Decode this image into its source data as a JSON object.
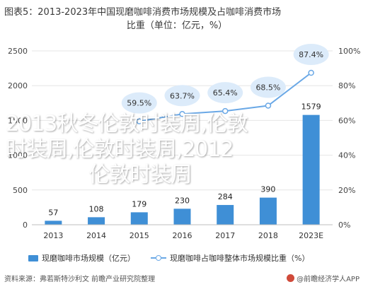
{
  "header": {
    "title_line1": "图表5：2013-2023年中国现磨咖啡消费市场规模及占咖啡消费市场",
    "title_line2": "比重（单位：亿元，%）"
  },
  "overlay": {
    "line1": "2013秋冬伦敦时装周,伦敦",
    "line2": "时装周,伦敦时装周,2012",
    "line3": "伦敦时装周"
  },
  "legend": {
    "bar_label": "现磨咖啡市场规模（亿元）",
    "line_label": "现磨咖啡占咖啡整体市场规模比重（%）"
  },
  "footer": {
    "source": "资料来源：弗若斯特沙利文 前瞻产业研究院整理",
    "brand": "@前瞻经济学人APP"
  },
  "colors": {
    "bar": "#3f8fd6",
    "line": "#6aa8e6",
    "bubble": "#dcebfa"
  },
  "chart_data": {
    "type": "bar",
    "categories": [
      "2013",
      "2014",
      "2015",
      "2016",
      "2017",
      "2018",
      "2023E"
    ],
    "series": [
      {
        "name": "现磨咖啡市场规模（亿元）",
        "type": "bar",
        "axis": "left",
        "values": [
          57,
          108,
          179,
          230,
          284,
          390,
          1579
        ],
        "labels": [
          "57",
          "108",
          "179",
          "230",
          "284",
          "390",
          "1579"
        ]
      },
      {
        "name": "现磨咖啡占咖啡整体市场规模比重（%）",
        "type": "line",
        "axis": "right",
        "values": [
          null,
          null,
          59.5,
          63.7,
          65.4,
          68.5,
          87.4
        ],
        "labels": [
          "",
          "",
          "59.5%",
          "63.7%",
          "65.4%",
          "68.5%",
          "87.4%"
        ]
      }
    ],
    "left_axis": {
      "ylim": [
        0,
        2500
      ],
      "ticks": [
        "0",
        "500",
        "1000",
        "1500",
        "2000",
        "2500"
      ]
    },
    "right_axis": {
      "ylim": [
        0,
        100
      ],
      "ticks": [
        "0%",
        "20%",
        "40%",
        "60%",
        "80%",
        "100%"
      ]
    },
    "legend_position": "bottom"
  }
}
